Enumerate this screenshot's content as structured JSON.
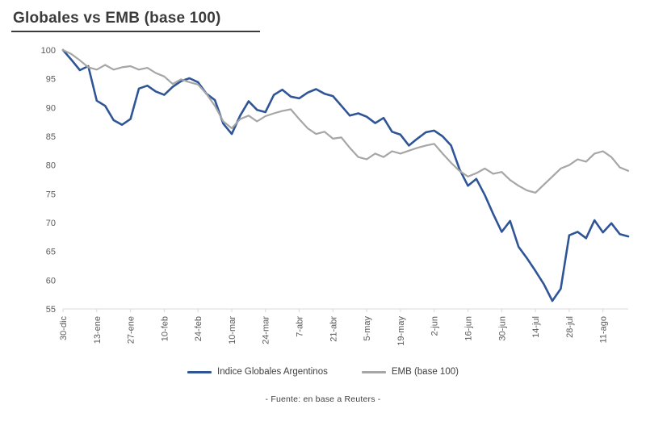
{
  "header": {
    "title": "Globales vs EMB (base 100)"
  },
  "footer": {
    "source": "- Fuente: en base a Reuters -"
  },
  "chart_data": {
    "type": "line",
    "title": "Globales vs EMB (base 100)",
    "xlabel": "",
    "ylabel": "",
    "ylim": [
      55,
      100
    ],
    "yticks": [
      55,
      60,
      65,
      70,
      75,
      80,
      85,
      90,
      95,
      100
    ],
    "grid": false,
    "legend_position": "bottom",
    "x_labels": [
      "30-dic",
      "13-ene",
      "27-ene",
      "10-feb",
      "24-feb",
      "10-mar",
      "24-mar",
      "7-abr",
      "21-abr",
      "5-may",
      "19-may",
      "2-jun",
      "16-jun",
      "30-jun",
      "14-jul",
      "28-jul",
      "11-ago"
    ],
    "tick_indices": [
      0,
      4,
      8,
      12,
      16,
      20,
      24,
      28,
      32,
      36,
      40,
      44,
      48,
      52,
      56,
      60,
      64
    ],
    "series": [
      {
        "name": "Indice Globales Argentinos",
        "color": "#2F5597",
        "width": 2.6,
        "values": [
          100,
          98.3,
          96.5,
          97.2,
          91.2,
          90.3,
          87.8,
          87.0,
          88.0,
          93.3,
          93.8,
          92.8,
          92.2,
          93.6,
          94.6,
          95.1,
          94.4,
          92.4,
          91.3,
          87.2,
          85.4,
          88.6,
          91.1,
          89.6,
          89.2,
          92.2,
          93.1,
          91.9,
          91.6,
          92.6,
          93.2,
          92.4,
          92.0,
          90.3,
          88.6,
          89.0,
          88.4,
          87.3,
          88.2,
          85.8,
          85.3,
          83.4,
          84.6,
          85.7,
          86.0,
          85.0,
          83.4,
          79.3,
          76.4,
          77.6,
          74.8,
          71.5,
          68.4,
          70.3,
          65.8,
          63.8,
          61.6,
          59.3,
          56.4,
          58.5,
          67.8,
          68.4,
          67.3,
          70.4,
          68.3,
          69.9,
          68.0,
          67.6
        ]
      },
      {
        "name": "EMB (base 100)",
        "color": "#A6A6A6",
        "width": 2.2,
        "values": [
          100,
          99.3,
          98.2,
          97.0,
          96.6,
          97.4,
          96.6,
          97.0,
          97.2,
          96.6,
          96.9,
          96.0,
          95.4,
          94.1,
          94.9,
          94.4,
          94.0,
          92.4,
          90.3,
          87.6,
          86.4,
          88.0,
          88.6,
          87.6,
          88.5,
          89.0,
          89.4,
          89.7,
          88.0,
          86.4,
          85.4,
          85.8,
          84.6,
          84.8,
          83.0,
          81.4,
          81.0,
          82.0,
          81.4,
          82.4,
          82.0,
          82.5,
          83.0,
          83.4,
          83.7,
          82.0,
          80.4,
          79.0,
          78.0,
          78.6,
          79.4,
          78.5,
          78.8,
          77.4,
          76.4,
          75.6,
          75.2,
          76.6,
          78.0,
          79.4,
          80.0,
          81.0,
          80.6,
          82.0,
          82.4,
          81.4,
          79.6,
          79.0
        ]
      }
    ]
  }
}
